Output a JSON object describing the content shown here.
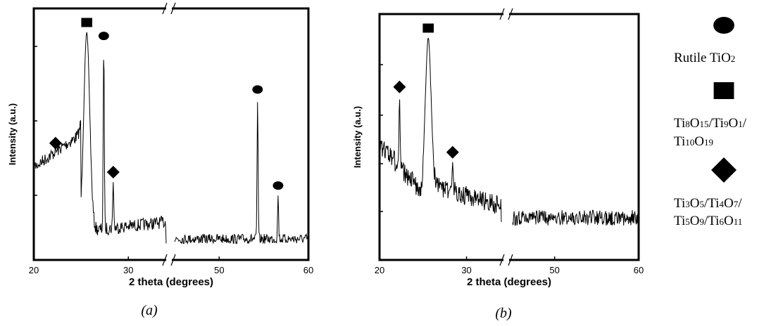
{
  "chart_data": [
    {
      "type": "line",
      "caption": "(a)",
      "xlabel": "2 theta (degrees)",
      "ylabel": "Intensity (a.u.)",
      "x_tick_labels": [
        "20",
        "30",
        "50",
        "60"
      ],
      "x_ranges": [
        [
          20,
          34
        ],
        [
          45,
          60
        ]
      ],
      "y_ticks_labeled": false,
      "axis_break_marker": "//",
      "peaks": [
        {
          "x": 22.3,
          "y": 0.46,
          "phase": "Ti3O5/Ti4O7/Ti5O9/Ti6O11",
          "marker": "diamond"
        },
        {
          "x": 25.6,
          "y": 1.0,
          "phase": "Ti8O15/Ti9O1/Ti10O19",
          "marker": "square"
        },
        {
          "x": 27.4,
          "y": 0.94,
          "phase": "Rutile TiO2",
          "marker": "circle"
        },
        {
          "x": 28.4,
          "y": 0.33,
          "phase": "Ti3O5/Ti4O7/Ti5O9/Ti6O11",
          "marker": "diamond"
        },
        {
          "x": 54.3,
          "y": 0.7,
          "phase": "Rutile TiO2",
          "marker": "circle"
        },
        {
          "x": 56.6,
          "y": 0.27,
          "phase": "Rutile TiO2",
          "marker": "circle"
        }
      ]
    },
    {
      "type": "line",
      "caption": "(b)",
      "xlabel": "2 theta (degrees)",
      "ylabel": "Intensity (a.u.)",
      "x_tick_labels": [
        "20",
        "30",
        "50",
        "60"
      ],
      "x_ranges": [
        [
          20,
          34
        ],
        [
          45,
          60
        ]
      ],
      "y_ticks_labeled": false,
      "axis_break_marker": "//",
      "peaks": [
        {
          "x": 22.3,
          "y": 0.73,
          "phase": "Ti3O5/Ti4O7/Ti5O9/Ti6O11",
          "marker": "diamond"
        },
        {
          "x": 25.6,
          "y": 1.0,
          "phase": "Ti8O15/Ti9O1/Ti10O19",
          "marker": "square"
        },
        {
          "x": 28.4,
          "y": 0.43,
          "phase": "Ti3O5/Ti4O7/Ti5O9/Ti6O11",
          "marker": "diamond"
        }
      ]
    }
  ],
  "legend": [
    {
      "marker": "circle",
      "lines": [
        [
          [
            "Rutile TiO",
            ""
          ],
          [
            "2",
            "sub"
          ]
        ]
      ]
    },
    {
      "marker": "square",
      "lines": [
        [
          [
            "Ti",
            ""
          ],
          [
            "8",
            "sub"
          ],
          [
            "O",
            ""
          ],
          [
            "15",
            "sub"
          ],
          [
            "/Ti",
            ""
          ],
          [
            "9",
            "sub"
          ],
          [
            "O",
            ""
          ],
          [
            "1",
            "sub"
          ],
          [
            "/",
            ""
          ]
        ],
        [
          [
            "Ti",
            ""
          ],
          [
            "10",
            "sub"
          ],
          [
            "O",
            ""
          ],
          [
            "19",
            "sub"
          ]
        ]
      ]
    },
    {
      "marker": "diamond",
      "lines": [
        [
          [
            "Ti",
            ""
          ],
          [
            "3",
            "sub"
          ],
          [
            "O",
            ""
          ],
          [
            "5",
            "sub"
          ],
          [
            "/Ti",
            ""
          ],
          [
            "4",
            "sub"
          ],
          [
            "O",
            ""
          ],
          [
            "7",
            "sub"
          ],
          [
            "/",
            ""
          ]
        ],
        [
          [
            "Ti",
            ""
          ],
          [
            "5",
            "sub"
          ],
          [
            "O",
            ""
          ],
          [
            "9",
            "sub"
          ],
          [
            "/Ti",
            ""
          ],
          [
            "6",
            "sub"
          ],
          [
            "O",
            ""
          ],
          [
            "11",
            "sub"
          ]
        ]
      ]
    }
  ],
  "colors": {
    "line": "#000000",
    "background": "#ffffff"
  }
}
